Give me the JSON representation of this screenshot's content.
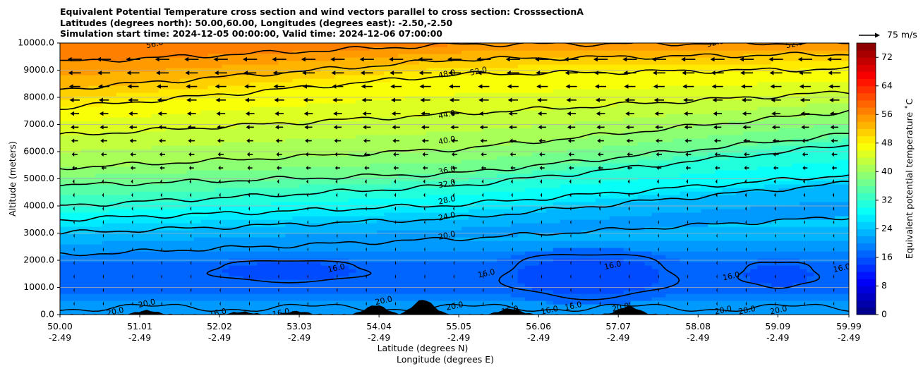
{
  "title_lines": [
    "Equivalent Potential Temperature cross section and wind vectors parallel to cross section: CrosssectionA",
    "Latitudes (degrees north): 50.00,60.00, Longitudes (degrees east): -2.50,-2.50",
    "Simulation start time: 2024-12-05 00:00:00, Valid time: 2024-12-06 07:00:00"
  ],
  "chart_data": {
    "type": "heatmap",
    "subtype": "filled-contour cross section with contour lines and wind vectors",
    "ylabel": "Altitude (meters)",
    "xlabel_lines": [
      "Latitude (degrees N)",
      "Longitude (degrees E)"
    ],
    "xlim": [
      50.0,
      59.99
    ],
    "ylim": [
      0,
      10000
    ],
    "x_ticks": [
      {
        "lat": "50.00",
        "lon": "-2.49",
        "value": 50.0
      },
      {
        "lat": "51.01",
        "lon": "-2.49",
        "value": 51.01
      },
      {
        "lat": "52.02",
        "lon": "-2.49",
        "value": 52.02
      },
      {
        "lat": "53.03",
        "lon": "-2.49",
        "value": 53.03
      },
      {
        "lat": "54.04",
        "lon": "-2.49",
        "value": 54.04
      },
      {
        "lat": "55.05",
        "lon": "-2.49",
        "value": 55.05
      },
      {
        "lat": "56.06",
        "lon": "-2.49",
        "value": 56.06
      },
      {
        "lat": "57.07",
        "lon": "-2.49",
        "value": 57.07
      },
      {
        "lat": "58.08",
        "lon": "-2.49",
        "value": 58.08
      },
      {
        "lat": "59.09",
        "lon": "-2.49",
        "value": 59.09
      },
      {
        "lat": "59.99",
        "lon": "-2.49",
        "value": 59.99
      }
    ],
    "y_ticks": [
      {
        "label": "0.0",
        "value": 0
      },
      {
        "label": "1000.0",
        "value": 1000
      },
      {
        "label": "2000.0",
        "value": 2000
      },
      {
        "label": "3000.0",
        "value": 3000
      },
      {
        "label": "4000.0",
        "value": 4000
      },
      {
        "label": "5000.0",
        "value": 5000
      },
      {
        "label": "6000.0",
        "value": 6000
      },
      {
        "label": "7000.0",
        "value": 7000
      },
      {
        "label": "8000.0",
        "value": 8000
      },
      {
        "label": "9000.0",
        "value": 9000
      },
      {
        "label": "10000.0",
        "value": 10000
      }
    ],
    "grid": "horizontal",
    "colorbar": {
      "label": "Equivalent potential temperature $^\\circ$C",
      "label_display": "Equivalent potential temperature ˚C",
      "range": [
        0,
        76
      ],
      "step": 2,
      "ticks": [
        0,
        8,
        16,
        24,
        32,
        40,
        48,
        56,
        64,
        72
      ],
      "colormap": "jet"
    },
    "quiver_key": {
      "label": "75 m/s"
    },
    "contour_levels": [
      {
        "level": 16,
        "label": "16.0"
      },
      {
        "level": 20,
        "label": "20.0"
      },
      {
        "level": 24,
        "label": "24.0"
      },
      {
        "level": 28,
        "label": "28.0"
      },
      {
        "level": 32,
        "label": "32.0"
      },
      {
        "level": 36,
        "label": "36.0"
      },
      {
        "level": 40,
        "label": "40.0"
      },
      {
        "level": 44,
        "label": "44.0"
      },
      {
        "level": 48,
        "label": "48.0"
      },
      {
        "level": 52,
        "label": "52.0"
      },
      {
        "level": 56,
        "label": "56.0"
      }
    ],
    "contour_lines_mid_altitude": [
      {
        "level": 20,
        "heights_at_lat": [
          [
            50.0,
            2200
          ],
          [
            55.05,
            2800
          ],
          [
            59.99,
            3600
          ]
        ]
      },
      {
        "level": 24,
        "heights_at_lat": [
          [
            50.0,
            3000
          ],
          [
            55.05,
            3550
          ],
          [
            59.99,
            4850
          ]
        ]
      },
      {
        "level": 28,
        "heights_at_lat": [
          [
            50.0,
            3500
          ],
          [
            55.05,
            4050
          ],
          [
            59.99,
            5150
          ]
        ]
      },
      {
        "level": 32,
        "heights_at_lat": [
          [
            50.0,
            4000
          ],
          [
            55.05,
            4750
          ],
          [
            59.99,
            6250
          ]
        ]
      },
      {
        "level": 36,
        "heights_at_lat": [
          [
            50.0,
            4750
          ],
          [
            55.05,
            5200
          ],
          [
            59.99,
            6650
          ]
        ]
      },
      {
        "level": 40,
        "heights_at_lat": [
          [
            50.0,
            5400
          ],
          [
            55.05,
            6100
          ],
          [
            59.99,
            7500
          ]
        ]
      },
      {
        "level": 44,
        "heights_at_lat": [
          [
            50.0,
            6600
          ],
          [
            55.05,
            7400
          ],
          [
            59.99,
            8200
          ]
        ]
      },
      {
        "level": 48,
        "heights_at_lat": [
          [
            50.0,
            7600
          ],
          [
            55.05,
            8850
          ],
          [
            59.99,
            9050
          ]
        ]
      },
      {
        "level": 52,
        "heights_at_lat": [
          [
            50.0,
            8300
          ],
          [
            55.05,
            9400
          ],
          [
            59.99,
            9600
          ]
        ]
      },
      {
        "level": 56,
        "heights_at_lat": [
          [
            50.0,
            9300
          ],
          [
            55.05,
            9950
          ],
          [
            59.99,
            10000
          ]
        ]
      }
    ],
    "contour_label_instances": [
      {
        "label": "56.0",
        "lat": 51.2,
        "alt": 9950
      },
      {
        "label": "48.0",
        "lat": 54.9,
        "alt": 8850
      },
      {
        "label": "52.0",
        "lat": 55.3,
        "alt": 8950
      },
      {
        "label": "52.0",
        "lat": 58.3,
        "alt": 10000
      },
      {
        "label": "52.0",
        "lat": 59.3,
        "alt": 9950
      },
      {
        "label": "44.0",
        "lat": 54.9,
        "alt": 7350
      },
      {
        "label": "40.0",
        "lat": 54.9,
        "alt": 6400
      },
      {
        "label": "36.0",
        "lat": 54.9,
        "alt": 5300
      },
      {
        "label": "32.0",
        "lat": 54.9,
        "alt": 4800
      },
      {
        "label": "28.0",
        "lat": 54.9,
        "alt": 4200
      },
      {
        "label": "24.0",
        "lat": 54.9,
        "alt": 3600
      },
      {
        "label": "20.0",
        "lat": 54.9,
        "alt": 2900
      },
      {
        "label": "16.0",
        "lat": 53.5,
        "alt": 1700
      },
      {
        "label": "16.0",
        "lat": 55.4,
        "alt": 1500
      },
      {
        "label": "16.0",
        "lat": 57.0,
        "alt": 1800
      },
      {
        "label": "16.0",
        "lat": 58.5,
        "alt": 1400
      },
      {
        "label": "16.0",
        "lat": 59.9,
        "alt": 1700
      },
      {
        "label": "20.0",
        "lat": 50.7,
        "alt": 100
      },
      {
        "label": "20.0",
        "lat": 51.1,
        "alt": 400
      },
      {
        "label": "16.0",
        "lat": 52.0,
        "alt": 50
      },
      {
        "label": "16.0",
        "lat": 52.8,
        "alt": 50
      },
      {
        "label": "20.0",
        "lat": 54.1,
        "alt": 500
      },
      {
        "label": "20.0",
        "lat": 55.0,
        "alt": 300
      },
      {
        "label": "16.0",
        "lat": 55.7,
        "alt": 150
      },
      {
        "label": "16.0",
        "lat": 56.2,
        "alt": 150
      },
      {
        "label": "16.0",
        "lat": 56.5,
        "alt": 300
      },
      {
        "label": "20.0",
        "lat": 57.1,
        "alt": 250
      },
      {
        "label": "20.0",
        "lat": 58.4,
        "alt": 150
      },
      {
        "label": "20.0",
        "lat": 58.7,
        "alt": 150
      },
      {
        "label": "20.0",
        "lat": 59.1,
        "alt": 150
      }
    ],
    "closed_16_contours": [
      {
        "lat_range": [
          51.9,
          53.9
        ],
        "alt_range": [
          1200,
          2000
        ]
      },
      {
        "lat_range": [
          55.6,
          57.8
        ],
        "alt_range": [
          600,
          2250
        ]
      },
      {
        "lat_range": [
          58.6,
          59.6
        ],
        "alt_range": [
          1000,
          1950
        ]
      }
    ],
    "theta_e_column_profile_alt_to_degC": [
      [
        0,
        21
      ],
      [
        500,
        20
      ],
      [
        1000,
        17
      ],
      [
        1500,
        16
      ],
      [
        2000,
        18
      ],
      [
        2500,
        21
      ],
      [
        3000,
        23
      ],
      [
        3500,
        25
      ],
      [
        4000,
        28
      ],
      [
        4500,
        31
      ],
      [
        5000,
        34
      ],
      [
        5500,
        36
      ],
      [
        6000,
        39
      ],
      [
        6500,
        41
      ],
      [
        7000,
        43
      ],
      [
        7500,
        45
      ],
      [
        8000,
        47
      ],
      [
        8500,
        49
      ],
      [
        9000,
        51
      ],
      [
        9500,
        53
      ],
      [
        10000,
        56
      ]
    ],
    "wind_vectors": {
      "direction": "toward decreasing latitude (leftward)",
      "rows_alt": [
        400,
        900,
        1400,
        1900,
        2400,
        2900,
        3400,
        3900,
        4400,
        4900,
        5400,
        5900,
        6400,
        6900,
        7400,
        7900,
        8400,
        8900,
        9400
      ],
      "speed_profile_alt_to_ms": [
        [
          400,
          2
        ],
        [
          1400,
          3
        ],
        [
          2400,
          4
        ],
        [
          3400,
          6
        ],
        [
          4400,
          9
        ],
        [
          5400,
          13
        ],
        [
          6400,
          18
        ],
        [
          7400,
          24
        ],
        [
          8400,
          30
        ],
        [
          9400,
          38
        ]
      ]
    },
    "terrain": [
      {
        "lat": 51.1,
        "alt": 150
      },
      {
        "lat": 52.3,
        "alt": 100
      },
      {
        "lat": 53.0,
        "alt": 120
      },
      {
        "lat": 54.0,
        "alt": 350
      },
      {
        "lat": 54.6,
        "alt": 550
      },
      {
        "lat": 55.7,
        "alt": 220
      },
      {
        "lat": 57.2,
        "alt": 300
      }
    ]
  }
}
